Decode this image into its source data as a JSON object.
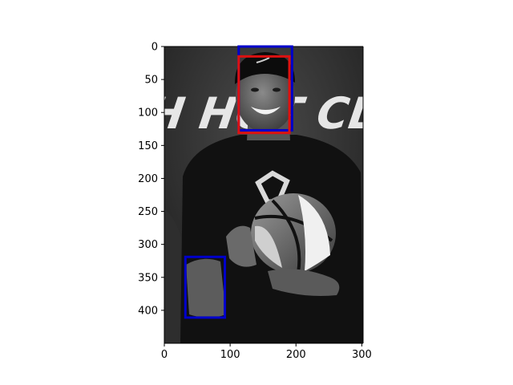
{
  "figure": {
    "image_description_hidden": false,
    "x_axis": {
      "ticks": [
        0,
        100,
        200,
        300
      ],
      "range": [
        0,
        302
      ]
    },
    "y_axis": {
      "ticks": [
        0,
        50,
        100,
        150,
        200,
        250,
        300,
        350,
        400
      ],
      "range": [
        0,
        450
      ],
      "inverted": true
    },
    "photo": {
      "subject": "grayscale photo of smiling man in cap holding a basketball",
      "banner_text": "H HOT CLI"
    },
    "boxes": [
      {
        "name": "blue-box-face",
        "color": "#0000cc",
        "x": [
          113,
          194
        ],
        "y": [
          0,
          127
        ]
      },
      {
        "name": "red-box-face",
        "color": "#dd1111",
        "x": [
          113,
          190
        ],
        "y": [
          15,
          131
        ]
      },
      {
        "name": "blue-box-hand",
        "color": "#0000cc",
        "x": [
          32,
          92
        ],
        "y": [
          319,
          411
        ]
      }
    ]
  }
}
